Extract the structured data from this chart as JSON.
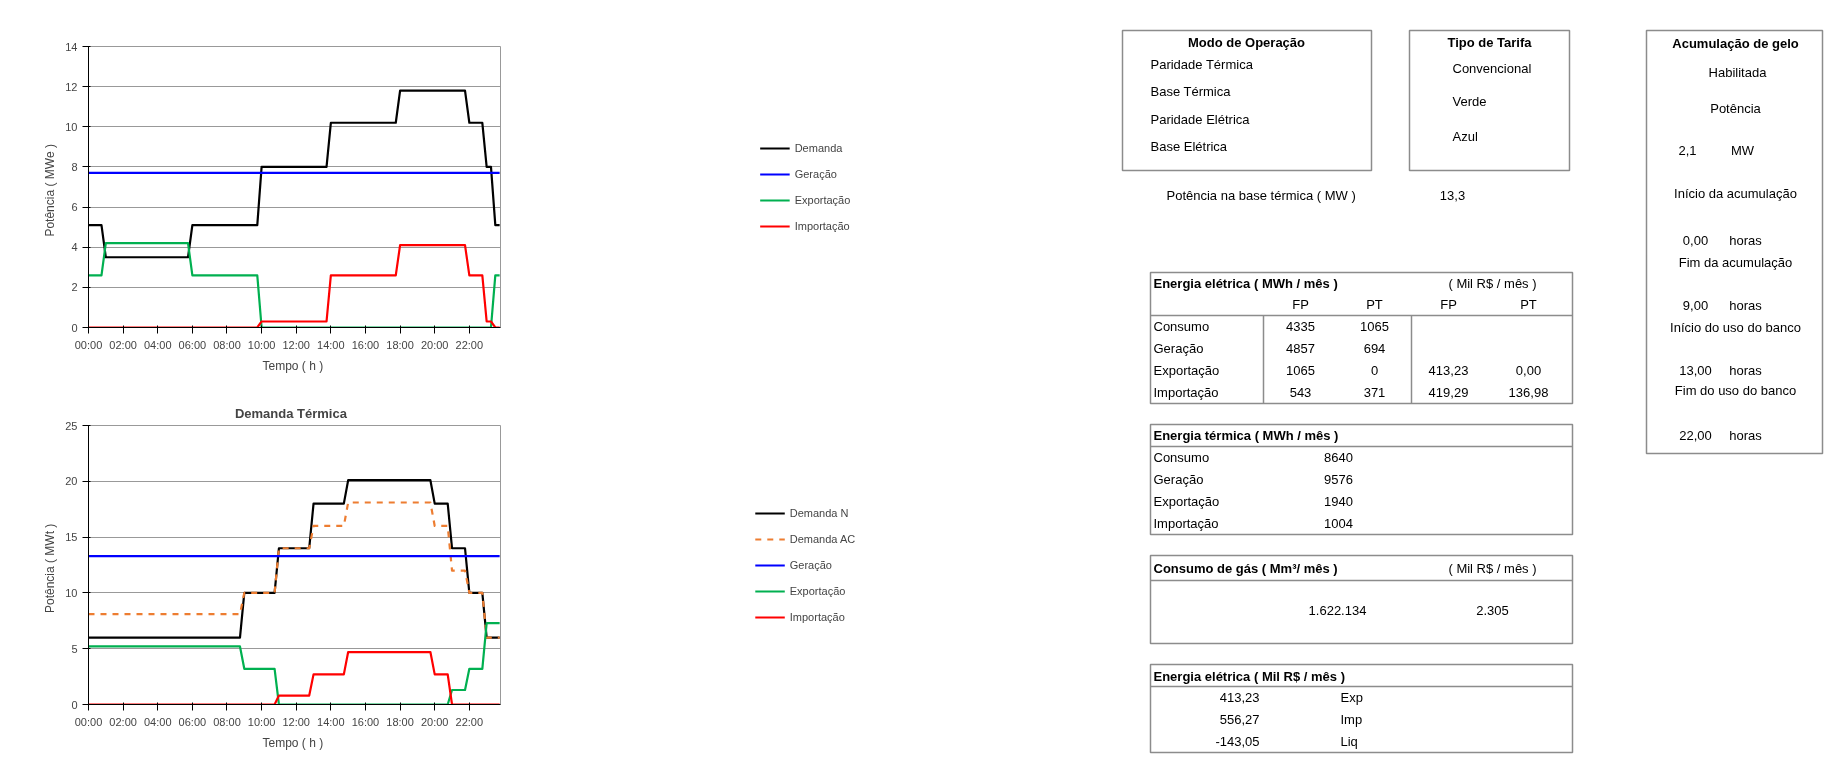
{
  "chart_data": [
    {
      "type": "line",
      "xlabel": "Tempo  ( h )",
      "ylabel": "Potência   ( MWe )",
      "xlim": [
        0,
        23.8
      ],
      "ylim": [
        0,
        14
      ],
      "xticks": [
        {
          "value": 0,
          "label": "00:00"
        },
        {
          "value": 2,
          "label": "02:00"
        },
        {
          "value": 4,
          "label": "04:00"
        },
        {
          "value": 6,
          "label": "06:00"
        },
        {
          "value": 8,
          "label": "08:00"
        },
        {
          "value": 10,
          "label": "10:00"
        },
        {
          "value": 12,
          "label": "12:00"
        },
        {
          "value": 14,
          "label": "14:00"
        },
        {
          "value": 16,
          "label": "16:00"
        },
        {
          "value": 18,
          "label": "18:00"
        },
        {
          "value": 20,
          "label": "20:00"
        },
        {
          "value": 22,
          "label": "22:00"
        }
      ],
      "yticks": [
        0,
        2,
        4,
        6,
        8,
        10,
        12,
        14
      ],
      "grid": "y",
      "legend": "right",
      "series": [
        {
          "name": "Demanda",
          "color": "#000000",
          "x": [
            0,
            0.75,
            1,
            5.75,
            6,
            9.75,
            10,
            13.75,
            14,
            17.75,
            18,
            21.75,
            22,
            22.75,
            23,
            23.25,
            23.5,
            23.75
          ],
          "values": [
            5.1,
            5.1,
            3.5,
            3.5,
            5.1,
            5.1,
            8,
            8,
            10.2,
            10.2,
            11.8,
            11.8,
            10.2,
            10.2,
            8,
            8,
            5.1,
            5.1
          ]
        },
        {
          "name": "Geração",
          "color": "#0000ff",
          "x": [
            0,
            23.75
          ],
          "values": [
            7.7,
            7.7
          ]
        },
        {
          "name": "Exportação",
          "color": "#00b050",
          "x": [
            0,
            0.75,
            1,
            5.75,
            6,
            9.75,
            10,
            23.25,
            23.5,
            23.75
          ],
          "values": [
            2.6,
            2.6,
            4.2,
            4.2,
            2.6,
            2.6,
            0,
            0,
            2.6,
            2.6
          ]
        },
        {
          "name": "Importação",
          "color": "#ff0000",
          "x": [
            0,
            9.75,
            10,
            13.75,
            14,
            17.75,
            18,
            21.75,
            22,
            22.75,
            23,
            23.25,
            23.5,
            23.75
          ],
          "values": [
            0,
            0,
            0.3,
            0.3,
            2.6,
            2.6,
            4.1,
            4.1,
            2.6,
            2.6,
            0.3,
            0.3,
            0,
            0
          ]
        }
      ]
    },
    {
      "type": "line",
      "title": "Demanda   Térmica",
      "xlabel": "Tempo  ( h )",
      "ylabel": "Potência   ( MWt )",
      "xlim": [
        0,
        23.8
      ],
      "ylim": [
        0,
        25
      ],
      "xticks": [
        {
          "value": 0,
          "label": "00:00"
        },
        {
          "value": 2,
          "label": "02:00"
        },
        {
          "value": 4,
          "label": "04:00"
        },
        {
          "value": 6,
          "label": "06:00"
        },
        {
          "value": 8,
          "label": "08:00"
        },
        {
          "value": 10,
          "label": "10:00"
        },
        {
          "value": 12,
          "label": "12:00"
        },
        {
          "value": 14,
          "label": "14:00"
        },
        {
          "value": 16,
          "label": "16:00"
        },
        {
          "value": 18,
          "label": "18:00"
        },
        {
          "value": 20,
          "label": "20:00"
        },
        {
          "value": 22,
          "label": "22:00"
        }
      ],
      "yticks": [
        0,
        5,
        10,
        15,
        20,
        25
      ],
      "grid": "y",
      "legend": "right",
      "series": [
        {
          "name": "Demanda N",
          "color": "#000000",
          "x": [
            0,
            8.75,
            9,
            10.75,
            11,
            12.75,
            13,
            14.75,
            15,
            19.75,
            20,
            20.75,
            21,
            21.75,
            22,
            22.75,
            23,
            23.75
          ],
          "values": [
            6,
            6,
            10,
            10,
            14,
            14,
            18,
            18,
            20.1,
            20.1,
            18,
            18,
            14,
            14,
            10,
            10,
            6,
            6
          ]
        },
        {
          "name": "Demanda AC",
          "color": "#ed7d31",
          "line_style": "dashed",
          "x": [
            0,
            8.75,
            9,
            10.75,
            11,
            12.75,
            13,
            14.75,
            15,
            19.75,
            20,
            20.75,
            21,
            21.75,
            22,
            22.75,
            23,
            23.75
          ],
          "values": [
            8.1,
            8.1,
            10,
            10,
            14,
            14,
            16,
            16,
            18.1,
            18.1,
            16,
            16,
            12,
            12,
            10,
            10,
            6,
            6
          ]
        },
        {
          "name": "Geração",
          "color": "#0000ff",
          "x": [
            0,
            23.75
          ],
          "values": [
            13.3,
            13.3
          ]
        },
        {
          "name": "Exportação",
          "color": "#00b050",
          "x": [
            0,
            8.75,
            9,
            10.75,
            11,
            20.75,
            21,
            21.75,
            22,
            22.75,
            23,
            23.75
          ],
          "values": [
            5.2,
            5.2,
            3.2,
            3.2,
            0,
            0,
            1.3,
            1.3,
            3.2,
            3.2,
            7.3,
            7.3
          ]
        },
        {
          "name": "Importação",
          "color": "#ff0000",
          "x": [
            0,
            10.75,
            11,
            12.75,
            13,
            14.75,
            15,
            19.75,
            20,
            20.75,
            21,
            23.75
          ],
          "values": [
            0,
            0,
            0.8,
            0.8,
            2.7,
            2.7,
            4.7,
            4.7,
            2.7,
            2.7,
            0,
            0
          ]
        }
      ]
    },
    {
      "type": "other",
      "title": "Modo de Operação",
      "annotations": [
        "Paridade Térmica",
        "Base Térmica",
        "Paridade Elétrica",
        "Base Elétrica"
      ]
    },
    {
      "type": "other",
      "title": "Tipo de Tarifa",
      "annotations": [
        "Convencional",
        "Verde",
        "Azul"
      ]
    },
    {
      "type": "other",
      "title": "Acumulação de gelo",
      "annotations": [
        "Habilitada",
        "Potência",
        "2,1",
        "MW",
        "Início da acumulação",
        "0,00",
        "horas",
        "Fim da acumulação",
        "9,00",
        "horas",
        "Início do uso do banco",
        "13,00",
        "horas",
        "Fim do uso do banco",
        "22,00",
        "horas"
      ]
    },
    {
      "type": "other",
      "annotations": [
        "Potência na base térmica  ( MW )",
        "13,3"
      ]
    },
    {
      "type": "other",
      "title": "Energia elétrica  ( MWh / mês )",
      "annotations": [
        "( Mil R$ / mês )",
        "FP",
        "PT",
        "FP",
        "PT",
        "Consumo",
        "4335",
        "1065",
        "Geração",
        "4857",
        "694",
        "Exportação",
        "1065",
        "0",
        "413,23",
        "0,00",
        "Importação",
        "543",
        "371",
        "419,29",
        "136,98"
      ]
    },
    {
      "type": "other",
      "title": "Energia térmica  ( MWh / mês )",
      "annotations": [
        "Consumo",
        "8640",
        "Geração",
        "9576",
        "Exportação",
        "1940",
        "Importação",
        "1004"
      ]
    },
    {
      "type": "other",
      "title": "Consumo de gás  ( Mm³/ mês )",
      "annotations": [
        "( Mil R$ / mês )",
        "1.622.134",
        "2.305"
      ]
    },
    {
      "type": "other",
      "title": "Energia elétrica ( Mil R$ / mês )",
      "annotations": [
        "413,23",
        "Exp",
        "556,27",
        "Imp",
        "-143,05",
        "Liq"
      ]
    }
  ]
}
